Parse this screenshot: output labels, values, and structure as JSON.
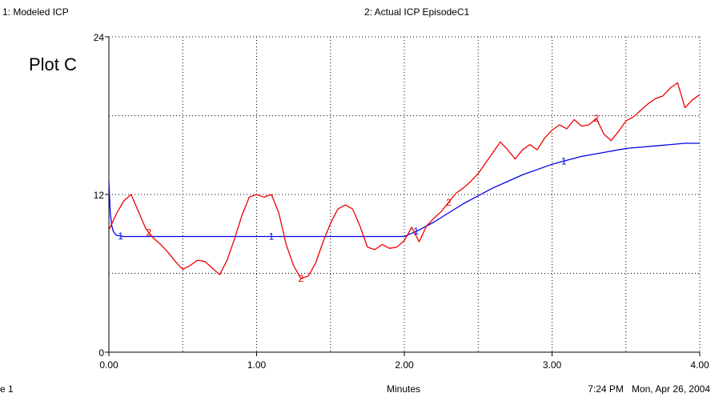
{
  "legend": {
    "series1": "1: Modeled  ICP",
    "series2": "2: Actual ICP EpisodeC1"
  },
  "footer": {
    "page_fragment": "e 1",
    "x_unit": "Minutes",
    "timestamp": "7:24 PM   Mon, Apr 26, 2004"
  },
  "colors": {
    "series1": "#0000ee",
    "series2": "#ee0000",
    "axis": "#000000",
    "grid": "#000000"
  },
  "chart_data": {
    "type": "line",
    "title": "Plot C",
    "xlabel": "Minutes",
    "ylabel": "",
    "xlim": [
      0,
      4
    ],
    "ylim": [
      0,
      24
    ],
    "x_ticks": [
      "0.00",
      "1.00",
      "2.00",
      "3.00",
      "4.00"
    ],
    "y_ticks": [
      "0",
      "12",
      "24"
    ],
    "grid": true,
    "grid_style": "dotted",
    "series": [
      {
        "name": "Modeled  ICP",
        "marker": "1",
        "color": "#0000ee",
        "x": [
          0,
          0.01,
          0.02,
          0.03,
          0.05,
          0.1,
          0.5,
          1.0,
          1.5,
          2.0,
          2.1,
          2.2,
          2.3,
          2.4,
          2.5,
          2.6,
          2.7,
          2.8,
          2.9,
          3.0,
          3.1,
          3.2,
          3.3,
          3.4,
          3.5,
          3.6,
          3.7,
          3.8,
          3.9,
          4.0
        ],
        "y": [
          13.0,
          10.5,
          9.6,
          9.2,
          8.9,
          8.8,
          8.8,
          8.8,
          8.8,
          8.8,
          9.3,
          9.9,
          10.6,
          11.3,
          11.9,
          12.5,
          13.0,
          13.5,
          13.9,
          14.3,
          14.6,
          14.9,
          15.1,
          15.3,
          15.5,
          15.6,
          15.7,
          15.8,
          15.9,
          15.9
        ]
      },
      {
        "name": "Actual ICP EpisodeC1",
        "marker": "2",
        "color": "#ee0000",
        "x": [
          0,
          0.05,
          0.1,
          0.15,
          0.2,
          0.25,
          0.3,
          0.35,
          0.4,
          0.45,
          0.5,
          0.55,
          0.6,
          0.65,
          0.7,
          0.75,
          0.8,
          0.85,
          0.9,
          0.95,
          1.0,
          1.05,
          1.1,
          1.15,
          1.2,
          1.25,
          1.3,
          1.35,
          1.4,
          1.45,
          1.5,
          1.55,
          1.6,
          1.65,
          1.7,
          1.75,
          1.8,
          1.85,
          1.9,
          1.95,
          2.0,
          2.05,
          2.1,
          2.15,
          2.2,
          2.25,
          2.3,
          2.35,
          2.4,
          2.45,
          2.5,
          2.55,
          2.6,
          2.65,
          2.7,
          2.75,
          2.8,
          2.85,
          2.9,
          2.95,
          3.0,
          3.05,
          3.1,
          3.15,
          3.2,
          3.25,
          3.3,
          3.35,
          3.4,
          3.45,
          3.5,
          3.55,
          3.6,
          3.65,
          3.7,
          3.75,
          3.8,
          3.85,
          3.9,
          3.95,
          4.0
        ],
        "y": [
          9.3,
          10.5,
          11.5,
          12.0,
          10.7,
          9.4,
          8.7,
          8.2,
          7.6,
          6.9,
          6.3,
          6.6,
          7.0,
          6.9,
          6.4,
          5.9,
          7.0,
          8.6,
          10.4,
          11.8,
          12.0,
          11.8,
          12.0,
          10.6,
          8.2,
          6.6,
          5.6,
          5.8,
          6.8,
          8.4,
          9.8,
          10.9,
          11.2,
          10.9,
          9.6,
          8.0,
          7.8,
          8.2,
          7.9,
          8.0,
          8.5,
          9.5,
          8.4,
          9.6,
          10.2,
          10.7,
          11.4,
          12.1,
          12.5,
          13.0,
          13.6,
          14.4,
          15.2,
          16.0,
          15.4,
          14.7,
          15.4,
          15.8,
          15.4,
          16.3,
          16.9,
          17.3,
          17.0,
          17.7,
          17.2,
          17.3,
          17.8,
          16.6,
          16.1,
          16.8,
          17.6,
          17.9,
          18.4,
          18.9,
          19.3,
          19.5,
          20.1,
          20.5,
          18.6,
          19.2,
          19.6
        ]
      }
    ]
  }
}
